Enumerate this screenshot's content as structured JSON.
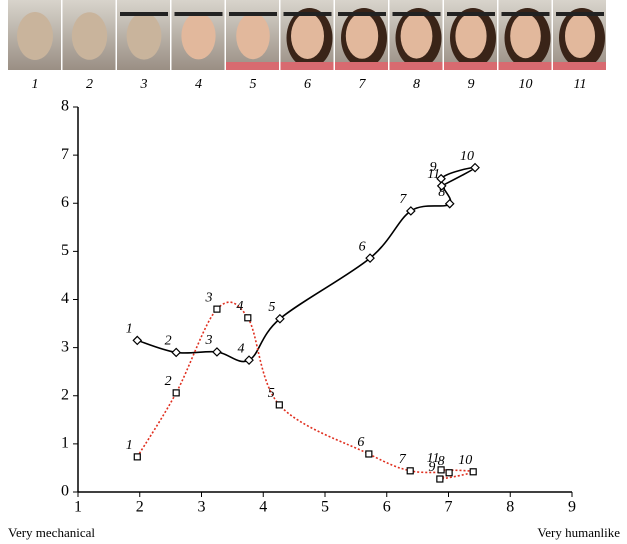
{
  "image_labels": [
    "1",
    "2",
    "3",
    "4",
    "5",
    "6",
    "7",
    "8",
    "9",
    "10",
    "11"
  ],
  "chart_data": {
    "type": "line",
    "xlim": [
      1,
      9
    ],
    "xticks": [
      1,
      2,
      3,
      4,
      5,
      6,
      7,
      8,
      9
    ],
    "ylim": [
      0,
      8
    ],
    "yticks": [
      0,
      1,
      2,
      3,
      4,
      5,
      6,
      7,
      8
    ],
    "x_label_left": "Very mechanical",
    "x_label_right": "Very humanlike",
    "grid": false,
    "point_labels": [
      "1",
      "2",
      "3",
      "4",
      "5",
      "6",
      "7",
      "8",
      "9",
      "10",
      "11"
    ],
    "series": [
      {
        "color": "#000000",
        "line_style": "solid",
        "marker": "diamond",
        "x": [
          1.96,
          2.59,
          3.25,
          3.77,
          4.27,
          5.73,
          6.39,
          7.02,
          6.88,
          7.43,
          6.89
        ],
        "values": [
          3.15,
          2.9,
          2.91,
          2.74,
          3.6,
          4.86,
          5.84,
          5.99,
          6.51,
          6.74,
          6.36
        ]
      },
      {
        "color": "#e03020",
        "line_style": "dotted",
        "marker": "square",
        "x": [
          1.96,
          2.59,
          3.25,
          3.75,
          4.26,
          5.71,
          6.38,
          7.01,
          6.86,
          7.4,
          6.88
        ],
        "values": [
          0.73,
          2.06,
          3.8,
          3.62,
          1.81,
          0.79,
          0.44,
          0.4,
          0.27,
          0.42,
          0.46
        ]
      }
    ]
  }
}
